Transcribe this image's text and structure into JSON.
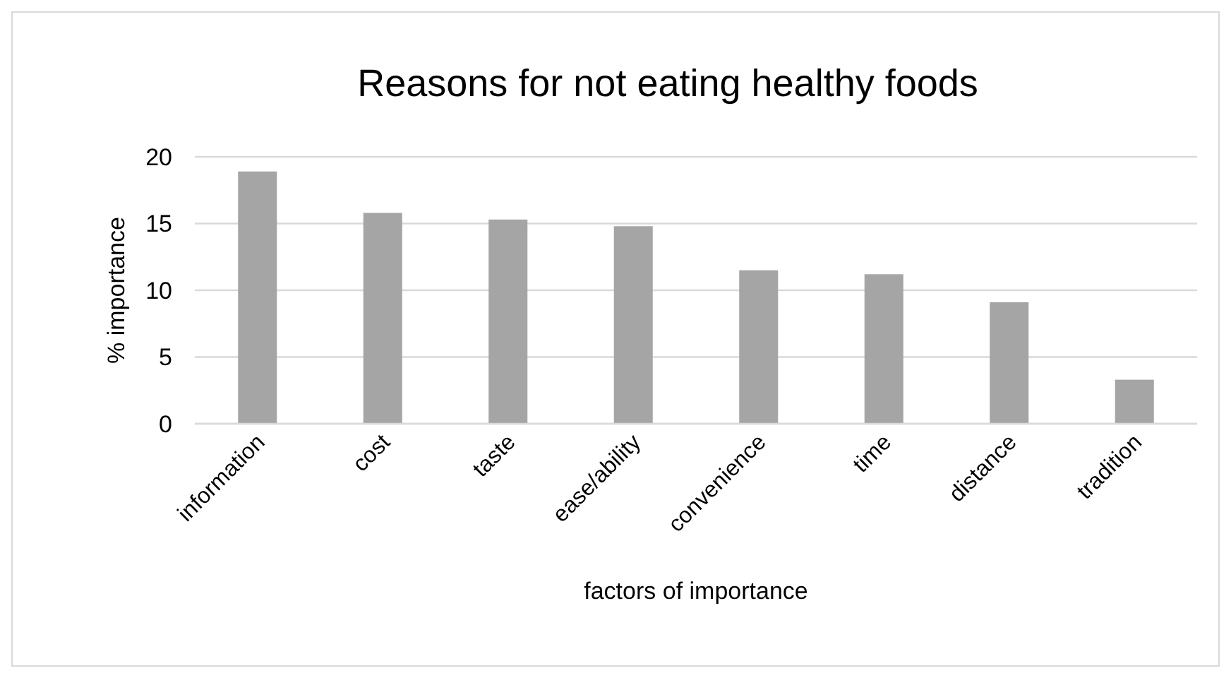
{
  "chart_data": {
    "type": "bar",
    "title": "Reasons for not eating healthy foods",
    "xlabel": "factors of importance",
    "ylabel": "% importance",
    "categories": [
      "information",
      "cost",
      "taste",
      "ease/ability",
      "convenience",
      "time",
      "distance",
      "tradition"
    ],
    "values": [
      18.9,
      15.8,
      15.3,
      14.8,
      11.5,
      11.2,
      9.1,
      3.3
    ],
    "color": "#a5a5a5",
    "ylim": [
      0,
      20
    ],
    "yticks": [
      0,
      5,
      10,
      15,
      20
    ],
    "grid": "y"
  }
}
